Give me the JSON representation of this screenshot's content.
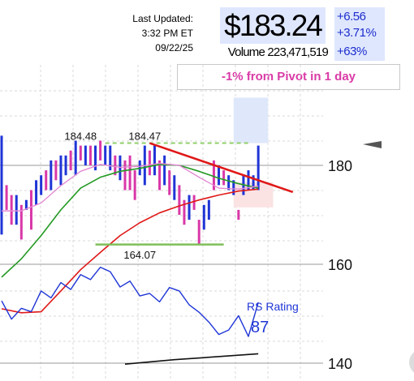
{
  "header": {
    "last_updated_label": "Last Updated:",
    "timestamp": "3:32 PM ET 09/22/25",
    "price": "$183.24",
    "change_abs": "+6.56",
    "change_pct": "+3.71%",
    "volume": "Volume 223,471,519",
    "volume_change": "+63%"
  },
  "pivot_note": "-1% from Pivot in 1 day",
  "chart_data": {
    "type": "bar",
    "title": "",
    "xlabel": "",
    "ylabel": "",
    "y_axis": {
      "ticks": [
        180,
        160,
        140
      ],
      "ylim": [
        139,
        205
      ],
      "scale": "linear"
    },
    "grid": true,
    "price_bars": [
      [
        186,
        166
      ],
      [
        176,
        171
      ],
      [
        174,
        168
      ],
      [
        174,
        168
      ],
      [
        172,
        165
      ],
      [
        173,
        171
      ],
      [
        175,
        167
      ],
      [
        177,
        172
      ],
      [
        178,
        174
      ],
      [
        179,
        175
      ],
      [
        181,
        175
      ],
      [
        181,
        177
      ],
      [
        182,
        176
      ],
      [
        182,
        178
      ],
      [
        183,
        179
      ],
      [
        185,
        178
      ],
      [
        184,
        181
      ],
      [
        184,
        180
      ],
      [
        184,
        180
      ],
      [
        184,
        179
      ],
      [
        185,
        181
      ],
      [
        184,
        180
      ],
      [
        184,
        179
      ],
      [
        182,
        178
      ],
      [
        182,
        177
      ],
      [
        181,
        175
      ],
      [
        182,
        175
      ],
      [
        179,
        173
      ],
      [
        181,
        178
      ],
      [
        184,
        176
      ],
      [
        183,
        178
      ],
      [
        184,
        178
      ],
      [
        181,
        175
      ],
      [
        182,
        176
      ],
      [
        179,
        174
      ],
      [
        178,
        173
      ],
      [
        176,
        170
      ],
      [
        173,
        168
      ],
      [
        174,
        169
      ],
      [
        174,
        171
      ],
      [
        169,
        164
      ],
      [
        172,
        167
      ],
      [
        173,
        169
      ],
      [
        181,
        175
      ],
      [
        180,
        176
      ],
      [
        179,
        176
      ],
      [
        178,
        175
      ],
      [
        177,
        174
      ],
      [
        171,
        169
      ],
      [
        178,
        174
      ],
      [
        179,
        175
      ],
      [
        178,
        175
      ],
      [
        184,
        175
      ]
    ],
    "bar_colors": [
      "#1f35d6",
      "#d938a8",
      "#d938a8",
      "#1f35d6",
      "#d938a8",
      "#1f35d6",
      "#d938a8",
      "#1f35d6",
      "#1f35d6",
      "#d938a8",
      "#1f35d6",
      "#d938a8",
      "#1f35d6",
      "#1f35d6",
      "#d938a8",
      "#1f35d6",
      "#d938a8",
      "#1f35d6",
      "#d938a8",
      "#1f35d6",
      "#d938a8",
      "#1f35d6",
      "#1f35d6",
      "#d938a8",
      "#1f35d6",
      "#d938a8",
      "#d938a8",
      "#d938a8",
      "#1f35d6",
      "#1f35d6",
      "#d938a8",
      "#1f35d6",
      "#d938a8",
      "#1f35d6",
      "#d938a8",
      "#1f35d6",
      "#d938a8",
      "#d938a8",
      "#1f35d6",
      "#d938a8",
      "#d938a8",
      "#1f35d6",
      "#1f35d6",
      "#d938a8",
      "#1f35d6",
      "#d938a8",
      "#1f35d6",
      "#1f35d6",
      "#d938a8",
      "#1f35d6",
      "#1f35d6",
      "#1f35d6",
      "#1f35d6"
    ],
    "ma_pink": [
      [
        0,
        170.8
      ],
      [
        4,
        170.8
      ],
      [
        8,
        172.4
      ],
      [
        12,
        175.9
      ],
      [
        16,
        178.8
      ],
      [
        20,
        180.2
      ],
      [
        24,
        179.6
      ],
      [
        28,
        179.8
      ],
      [
        32,
        180.4
      ],
      [
        36,
        180.0
      ],
      [
        40,
        177.6
      ],
      [
        44,
        175.4
      ],
      [
        48,
        175.2
      ],
      [
        52,
        175.8
      ]
    ],
    "ma_green": [
      [
        0,
        157.4
      ],
      [
        4,
        161.1
      ],
      [
        8,
        165.8
      ],
      [
        12,
        171.0
      ],
      [
        16,
        175.4
      ],
      [
        20,
        177.6
      ],
      [
        24,
        178.8
      ],
      [
        28,
        179.4
      ],
      [
        32,
        180.2
      ],
      [
        36,
        180.0
      ],
      [
        40,
        178.8
      ],
      [
        44,
        177.4
      ],
      [
        48,
        176.3
      ],
      [
        52,
        175.4
      ]
    ],
    "ma_red": [
      [
        0,
        151.0
      ],
      [
        4,
        150.2
      ],
      [
        8,
        150.4
      ],
      [
        12,
        154.6
      ],
      [
        16,
        158.9
      ],
      [
        20,
        162.4
      ],
      [
        24,
        165.8
      ],
      [
        28,
        168.4
      ],
      [
        32,
        170.4
      ],
      [
        36,
        171.8
      ],
      [
        40,
        173.0
      ],
      [
        44,
        174.0
      ],
      [
        48,
        174.8
      ],
      [
        52,
        175.2
      ]
    ],
    "rs_line": [
      [
        0,
        152.6
      ],
      [
        2,
        148.9
      ],
      [
        4,
        151.1
      ],
      [
        6,
        150.4
      ],
      [
        8,
        154.6
      ],
      [
        10,
        153.2
      ],
      [
        12,
        156.3
      ],
      [
        14,
        154.9
      ],
      [
        16,
        157.9
      ],
      [
        18,
        156.9
      ],
      [
        20,
        159.4
      ],
      [
        22,
        158.5
      ],
      [
        24,
        155.4
      ],
      [
        26,
        156.6
      ],
      [
        28,
        153.6
      ],
      [
        30,
        154.1
      ],
      [
        32,
        152.4
      ],
      [
        34,
        155.3
      ],
      [
        36,
        154.6
      ],
      [
        38,
        151.8
      ],
      [
        40,
        150.3
      ],
      [
        42,
        148.3
      ],
      [
        44,
        145.8
      ],
      [
        46,
        146.7
      ],
      [
        48,
        149.6
      ],
      [
        50,
        145.4
      ],
      [
        52,
        152.3
      ]
    ],
    "bottom_line": [
      [
        25,
        139.8
      ],
      [
        35,
        140.7
      ],
      [
        45,
        141.4
      ],
      [
        52,
        141.9
      ]
    ],
    "handle_line": {
      "from": [
        30,
        184.5
      ],
      "to": [
        59,
        174.6
      ]
    },
    "base_line": {
      "from": [
        19,
        164.0
      ],
      "to": [
        45,
        164.0
      ]
    },
    "pivot_line": {
      "from": [
        21,
        184.5
      ],
      "to": [
        50,
        184.5
      ]
    },
    "buy_zone_upper": {
      "from": [
        47,
        193.7
      ],
      "to": [
        54,
        184.5
      ]
    },
    "buy_zone_lower": {
      "from": [
        47,
        176.6
      ],
      "to": [
        55,
        171.5
      ]
    },
    "price_annotations": [
      {
        "text": "184.48",
        "x": 16,
        "y": 184.48
      },
      {
        "text": "184.47",
        "x": 29,
        "y": 184.47
      },
      {
        "text": "164.07",
        "x": 28,
        "y": 164.07
      }
    ],
    "rs_rating": {
      "label": "RS Rating",
      "value": "87"
    }
  }
}
